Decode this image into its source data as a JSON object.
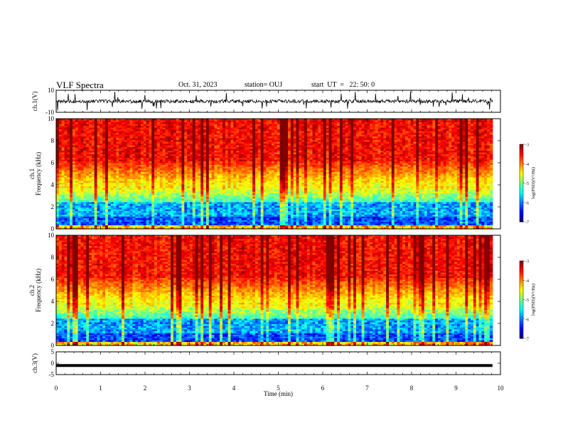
{
  "header": {
    "title": "VLF Spectra",
    "date": "Oct. 31, 2023",
    "station": "station= OUJ",
    "start": "start  UT  =   22: 50: 0"
  },
  "chart_data": [
    {
      "type": "line",
      "ylabel": "ch.1(V)",
      "ylim": [
        -10,
        10
      ],
      "yticks": [
        "10",
        "-10"
      ],
      "xlim": [
        0,
        10
      ],
      "description_level": 0,
      "noise_amplitude": 1.5
    },
    {
      "type": "heatmap",
      "ylabel_line1": "ch.1",
      "ylabel_line2": "Frequency  (kHz)",
      "ylim": [
        0,
        10
      ],
      "yticks": [
        "0",
        "2",
        "4",
        "6",
        "8",
        "10"
      ],
      "xlim": [
        0,
        10
      ],
      "data_end_min": 9.82,
      "colorbar": {
        "label": "log(PSD)(V²/Hz)",
        "range": [
          -7,
          -3
        ],
        "ticks": [
          "-3",
          "-4",
          "-5",
          "-6",
          "-7"
        ]
      }
    },
    {
      "type": "heatmap",
      "ylabel_line1": "ch.2",
      "ylabel_line2": "Frequency  (kHz)",
      "ylim": [
        0,
        10
      ],
      "yticks": [
        "0",
        "2",
        "4",
        "6",
        "8",
        "10"
      ],
      "xlim": [
        0,
        10
      ],
      "data_end_min": 9.82,
      "colorbar": {
        "label": "log(PSD)(V²/Hz)",
        "range": [
          -7,
          -3
        ],
        "ticks": [
          "-3",
          "-4",
          "-5",
          "-6",
          "-7"
        ]
      }
    },
    {
      "type": "line",
      "ylabel": "ch.3(V)",
      "ylim": [
        -5,
        5
      ],
      "yticks": [
        "5",
        "0",
        "-5"
      ],
      "xlim": [
        0,
        10
      ],
      "level": -1
    }
  ],
  "xaxis": {
    "label": "Time  (min)",
    "ticks": [
      "0",
      "1",
      "2",
      "3",
      "4",
      "5",
      "6",
      "7",
      "8",
      "9",
      "10"
    ]
  }
}
